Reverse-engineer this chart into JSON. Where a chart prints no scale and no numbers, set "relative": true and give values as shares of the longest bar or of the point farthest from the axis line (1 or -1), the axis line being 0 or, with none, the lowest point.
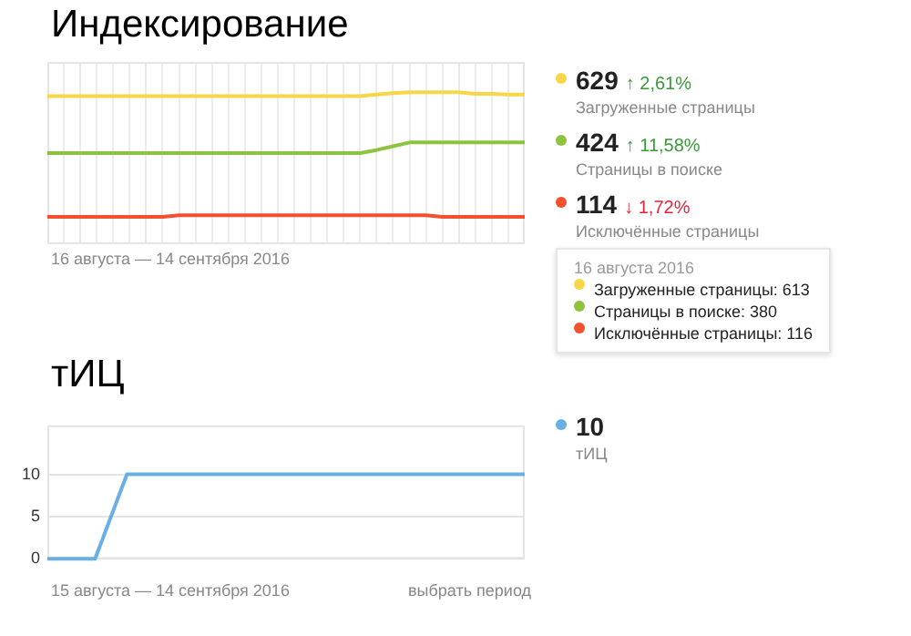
{
  "chart_data": [
    {
      "type": "line",
      "title": "Индексирование",
      "xlabel": "16 августа — 14 сентября 2016",
      "relative": true,
      "grid": "x",
      "tick_labels": false,
      "legend": "right",
      "marker": "none",
      "categories": [
        null,
        null,
        null,
        null,
        null,
        null,
        null,
        null,
        null,
        null,
        null,
        null,
        null,
        null,
        null,
        null,
        null,
        null,
        null,
        null,
        null,
        null,
        null,
        null,
        null,
        null,
        null,
        null,
        null,
        null
      ],
      "series": [
        {
          "name": "Загруженные страницы",
          "color": "#f9d648",
          "values": [
            0.975,
            0.975,
            0.975,
            0.975,
            0.975,
            0.975,
            0.975,
            0.975,
            0.975,
            0.975,
            0.975,
            0.975,
            0.975,
            0.975,
            0.975,
            0.975,
            0.975,
            0.975,
            0.975,
            0.975,
            0.985,
            0.995,
            1,
            1,
            1,
            1,
            0.99,
            0.99,
            0.985,
            0.985
          ]
        },
        {
          "name": "Страницы в поиске",
          "color": "#8cc43f",
          "values": [
            0.6,
            0.6,
            0.6,
            0.6,
            0.6,
            0.6,
            0.6,
            0.6,
            0.6,
            0.6,
            0.6,
            0.6,
            0.6,
            0.6,
            0.6,
            0.6,
            0.6,
            0.6,
            0.6,
            0.6,
            0.62,
            0.645,
            0.67,
            0.67,
            0.67,
            0.67,
            0.67,
            0.67,
            0.67,
            0.67
          ]
        },
        {
          "name": "Исключённые страницы",
          "color": "#f44f2e",
          "values": [
            0.18,
            0.18,
            0.18,
            0.18,
            0.18,
            0.18,
            0.18,
            0.18,
            0.19,
            0.19,
            0.19,
            0.19,
            0.19,
            0.19,
            0.19,
            0.19,
            0.19,
            0.19,
            0.19,
            0.19,
            0.19,
            0.19,
            0.19,
            0.19,
            0.18,
            0.18,
            0.18,
            0.18,
            0.18,
            0.18
          ]
        }
      ],
      "annotations": [
        "16 августа 2016",
        "Загруженные страницы: 613",
        "Страницы в поиске: 380",
        "Исключённые страницы: 116",
        "629",
        "↑ 2,61%",
        "424",
        "↑ 11,58%",
        "114",
        "↓ 1,72%"
      ]
    },
    {
      "type": "line",
      "title": "тИЦ",
      "xlabel": "15 августа — 14 сентября 2016",
      "grid": "y",
      "tick_labels": "y",
      "legend": "right",
      "marker": "none",
      "ylim": [
        0,
        15.8
      ],
      "yticks": [
        0,
        5,
        10
      ],
      "categories": [
        null,
        null,
        null,
        null,
        null,
        null,
        null,
        null,
        null,
        null,
        null,
        null,
        null,
        null,
        null,
        null,
        null,
        null,
        null,
        null,
        null,
        null,
        null,
        null,
        null,
        null,
        null,
        null,
        null,
        null,
        null
      ],
      "series": [
        {
          "name": "тИЦ",
          "color": "#6aaee6",
          "values": [
            0,
            0,
            0,
            0,
            5,
            10,
            10,
            10,
            10,
            10,
            10,
            10,
            10,
            10,
            10,
            10,
            10,
            10,
            10,
            10,
            10,
            10,
            10,
            10,
            10,
            10,
            10,
            10,
            10,
            10,
            10
          ]
        }
      ],
      "annotations": [
        "10",
        "выбрать период"
      ]
    }
  ]
}
